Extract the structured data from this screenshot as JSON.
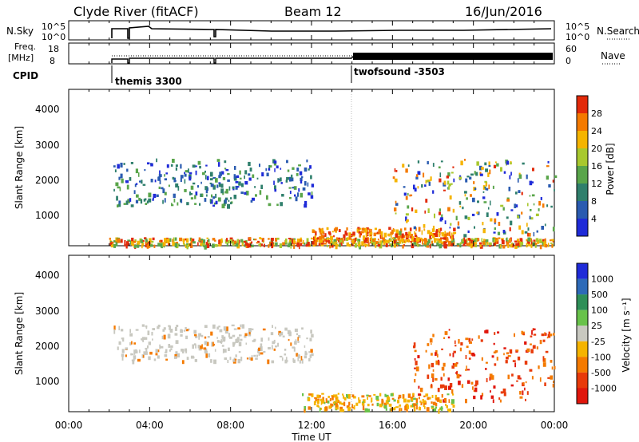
{
  "header": {
    "radar": "Clyde River (fitACF)",
    "beam": "Beam 12",
    "date": "16/Jun/2016"
  },
  "strips": {
    "nsky_label": "N.Sky",
    "nsky_ticks": [
      "10^5",
      "10^0"
    ],
    "nsearch_label": "N.Search",
    "nsearch_ticks": [
      "10^5",
      "10^0"
    ],
    "freq_label_1": "Freq.",
    "freq_label_2": "[MHz]",
    "freq_ticks": [
      "18",
      "8"
    ],
    "nave_label": "Nave",
    "nave_ticks": [
      "60",
      "0"
    ],
    "cpid_label": "CPID",
    "cpid_modes": [
      {
        "name": "themis 3300",
        "start_hour": 2.0
      },
      {
        "name": "twofsound -3503",
        "start_hour": 14.0
      }
    ]
  },
  "chart_data": [
    {
      "type": "heatmap",
      "name": "power",
      "x_range_hours": [
        0,
        24
      ],
      "ylim": [
        180,
        4500
      ],
      "ylabel": "Slant Range [km]",
      "yticks": [
        "1000",
        "2000",
        "3000",
        "4000"
      ],
      "colorbar": {
        "label": "Power [dB]",
        "ticks": [
          "4",
          "8",
          "12",
          "16",
          "20",
          "24",
          "28"
        ],
        "colors": [
          "#1f2bd8",
          "#2a5bb0",
          "#2f7f6c",
          "#59a54a",
          "#a8c82e",
          "#f5b400",
          "#f47a00",
          "#e22a0a"
        ]
      },
      "echo_regions": [
        {
          "label": "near-range",
          "hours": [
            2.0,
            24.0
          ],
          "range_km": [
            200,
            420
          ],
          "intensity": "strong"
        },
        {
          "label": "near-range strong",
          "hours": [
            12.0,
            19.0
          ],
          "range_km": [
            300,
            700
          ],
          "intensity": "max"
        },
        {
          "label": "arc",
          "hours": [
            2.2,
            12.0
          ],
          "range_km": [
            1300,
            2600
          ],
          "intensity": "weak"
        },
        {
          "label": "late far-range",
          "hours": [
            16.0,
            24.0
          ],
          "range_km": [
            500,
            2600
          ],
          "intensity": "mixed"
        }
      ]
    },
    {
      "type": "heatmap",
      "name": "velocity",
      "x_range_hours": [
        0,
        24
      ],
      "ylim": [
        180,
        4500
      ],
      "ylabel": "Slant Range [km]",
      "yticks": [
        "1000",
        "2000",
        "3000",
        "4000"
      ],
      "xlabel": "Time UT",
      "xticks": [
        "00:00",
        "04:00",
        "08:00",
        "12:00",
        "16:00",
        "20:00",
        "00:00"
      ],
      "colorbar": {
        "label": "Velocity [m s⁻¹]",
        "ticks": [
          "1000",
          "500",
          "100",
          "25",
          "-25",
          "-100",
          "-500",
          "-1000"
        ],
        "colors": [
          "#1f2bd8",
          "#2d6ab8",
          "#2e8f58",
          "#68c24a",
          "#c8c8c0",
          "#f5b400",
          "#f47a00",
          "#e83a0a",
          "#e0160c"
        ]
      },
      "echo_regions": [
        {
          "label": "ground scatter arc",
          "hours": [
            2.2,
            12.0
          ],
          "range_km": [
            1600,
            2600
          ],
          "color": "ground-grey"
        },
        {
          "label": "near-range",
          "hours": [
            11.5,
            19.0
          ],
          "range_km": [
            250,
            700
          ],
          "color": "orange-yellow"
        },
        {
          "label": "late far-range",
          "hours": [
            17.0,
            24.0
          ],
          "range_km": [
            500,
            2500
          ],
          "color": "orange-red"
        }
      ]
    }
  ]
}
